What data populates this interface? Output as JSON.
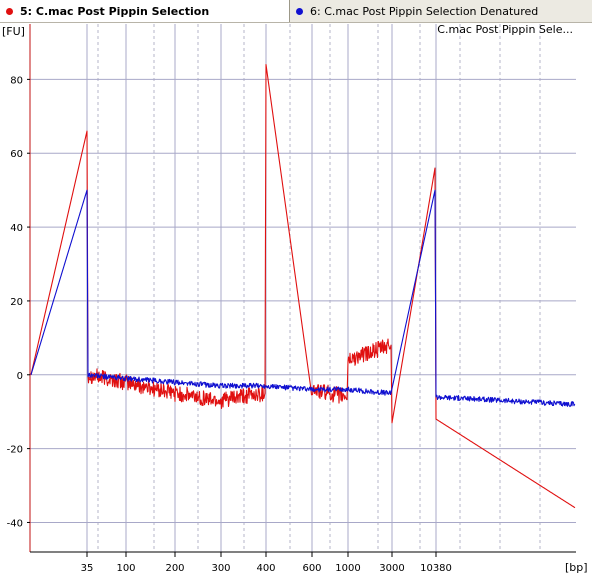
{
  "tabs": [
    {
      "label": "5: C.mac Post Pippin Selection",
      "color": "#e01010",
      "active": true
    },
    {
      "label": "6: C.mac Post Pippin Selection Denatured",
      "color": "#1010d0",
      "active": false
    }
  ],
  "chart_data": {
    "type": "line",
    "title": "C.mac Post Pippin Sele...",
    "ylabel": "[FU]",
    "xlabel": "[bp]",
    "ylim": [
      -48,
      95
    ],
    "y_ticks": [
      -40,
      -20,
      0,
      20,
      40,
      60,
      80
    ],
    "x_ticks": [
      "35",
      "100",
      "200",
      "300",
      "400",
      "600",
      "1000",
      "3000",
      "10380"
    ],
    "grid": true,
    "series": [
      {
        "color": "#e01010",
        "x": [
          "35",
          "35",
          "35",
          "100",
          "200",
          "300",
          "400",
          "400",
          "600",
          "1000",
          "1000",
          "3000",
          "3000",
          "10380",
          "10380",
          "10380"
        ],
        "y": [
          0,
          66,
          0,
          -2,
          -5,
          -7,
          -5,
          84,
          -4,
          -6,
          4,
          8,
          -13,
          56,
          -12,
          -36
        ]
      },
      {
        "color": "#1010d0",
        "x": [
          "35",
          "35",
          "35",
          "100",
          "200",
          "300",
          "400",
          "600",
          "1000",
          "3000",
          "10380",
          "10380",
          "10380"
        ],
        "y": [
          0,
          50,
          0,
          -1,
          -2,
          -3,
          -3,
          -4,
          -4,
          -5,
          50,
          -6,
          -8
        ]
      }
    ]
  }
}
